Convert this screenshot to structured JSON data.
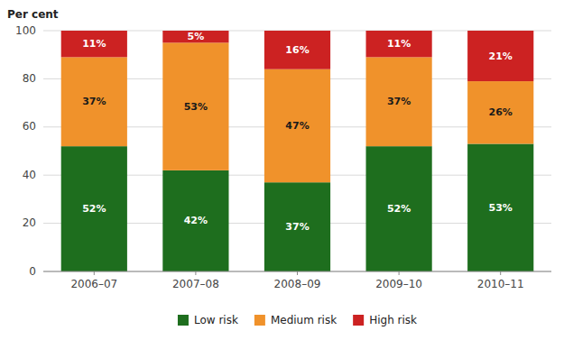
{
  "chart_data": {
    "type": "bar",
    "stacked": true,
    "ylabel": "Per cent",
    "categories": [
      "2006–07",
      "2007–08",
      "2008–09",
      "2009–10",
      "2010–11"
    ],
    "series": [
      {
        "name": "Low risk",
        "color": "#1e6e1e",
        "values": [
          52,
          42,
          37,
          52,
          53
        ],
        "value_labels": [
          "52%",
          "42%",
          "37%",
          "52%",
          "53%"
        ]
      },
      {
        "name": "Medium risk",
        "color": "#f0922b",
        "values": [
          37,
          53,
          47,
          37,
          26
        ],
        "value_labels": [
          "37%",
          "53%",
          "47%",
          "37%",
          "26%"
        ]
      },
      {
        "name": "High risk",
        "color": "#cc2222",
        "values": [
          11,
          5,
          16,
          11,
          21
        ],
        "value_labels": [
          "11%",
          "5%",
          "16%",
          "11%",
          "21%"
        ]
      }
    ],
    "ylim": [
      0,
      100
    ],
    "yticks": [
      0,
      20,
      40,
      60,
      80,
      100
    ],
    "grid": true,
    "legend": "bottom",
    "data_labels": true
  }
}
